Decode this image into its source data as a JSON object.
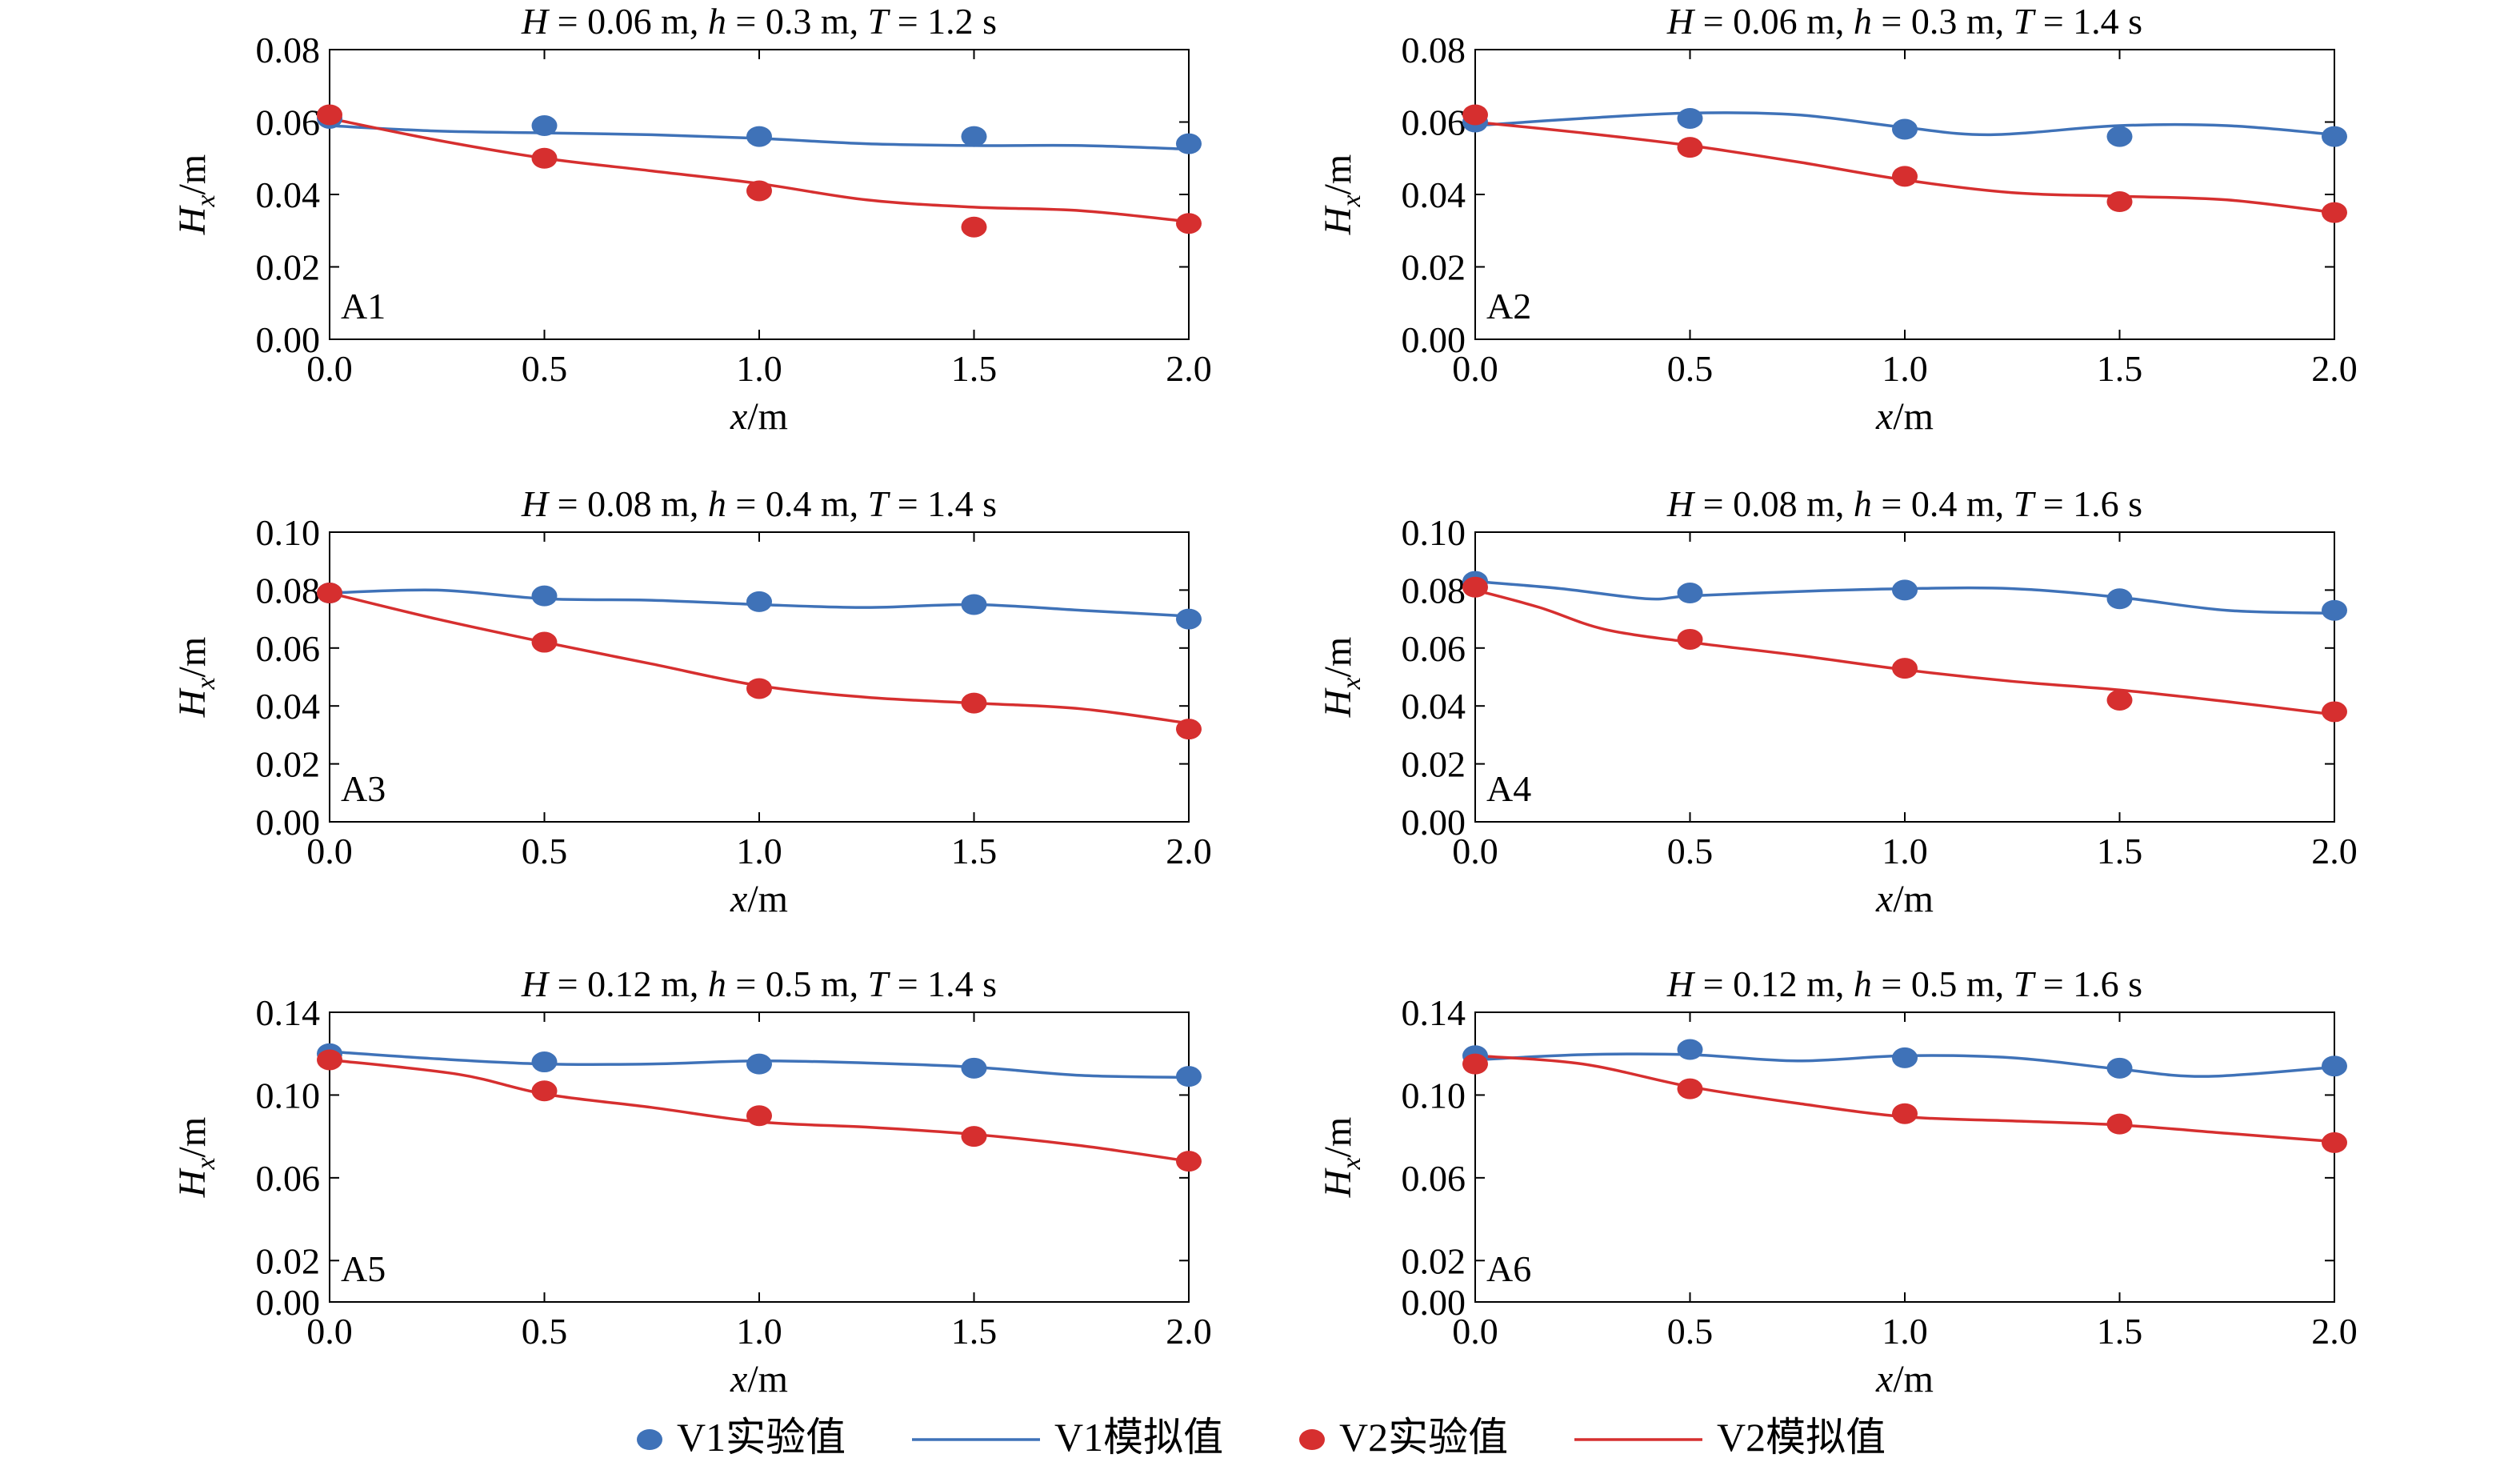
{
  "colors": {
    "v1": "#3f72b8",
    "v2": "#d62f2f",
    "frame": "#000000"
  },
  "legend": {
    "placement": "bottom-center",
    "entries": [
      {
        "kind": "marker",
        "series": "v1",
        "label": "V1实验值"
      },
      {
        "kind": "line",
        "series": "v1",
        "label": "V1模拟值"
      },
      {
        "kind": "marker",
        "series": "v2",
        "label": "V2实验值"
      },
      {
        "kind": "line",
        "series": "v2",
        "label": "V2模拟值"
      }
    ]
  },
  "chart_data": [
    {
      "type": "line",
      "panel_label": "A1",
      "title": {
        "H": "0.06",
        "h": "0.3",
        "T": "1.2"
      },
      "xlabel": "x/m",
      "ylabel": {
        "sym": "H",
        "sub": "x",
        "unit": "/m"
      },
      "xlim": [
        0,
        2.0
      ],
      "ylim": [
        0,
        0.08
      ],
      "xticks": [
        "0.0",
        "0.5",
        "1.0",
        "1.5",
        "2.0"
      ],
      "yticks": [
        "0.00",
        "0.02",
        "0.04",
        "0.06",
        "0.08"
      ],
      "series": [
        {
          "key": "v1",
          "name": "V1实验值",
          "style": "marker",
          "x": [
            0,
            0.5,
            1.0,
            1.5,
            2.0
          ],
          "y": [
            0.061,
            0.059,
            0.056,
            0.056,
            0.054
          ]
        },
        {
          "key": "v1",
          "name": "V1模拟值",
          "style": "line",
          "x": [
            0,
            0.25,
            0.5,
            0.75,
            1.0,
            1.25,
            1.5,
            1.75,
            2.0
          ],
          "y": [
            0.059,
            0.0575,
            0.057,
            0.0565,
            0.0555,
            0.054,
            0.0535,
            0.0535,
            0.0525
          ]
        },
        {
          "key": "v2",
          "name": "V2实验值",
          "style": "marker",
          "x": [
            0,
            0.5,
            1.0,
            1.5,
            2.0
          ],
          "y": [
            0.062,
            0.05,
            0.041,
            0.031,
            0.032
          ]
        },
        {
          "key": "v2",
          "name": "V2模拟值",
          "style": "line",
          "x": [
            0,
            0.25,
            0.5,
            0.75,
            1.0,
            1.25,
            1.5,
            1.75,
            2.0
          ],
          "y": [
            0.061,
            0.055,
            0.05,
            0.0465,
            0.043,
            0.0385,
            0.0365,
            0.0355,
            0.0325
          ]
        }
      ]
    },
    {
      "type": "line",
      "panel_label": "A2",
      "title": {
        "H": "0.06",
        "h": "0.3",
        "T": "1.4"
      },
      "xlabel": "x/m",
      "ylabel": {
        "sym": "H",
        "sub": "x",
        "unit": "/m"
      },
      "xlim": [
        0,
        2.0
      ],
      "ylim": [
        0,
        0.08
      ],
      "xticks": [
        "0.0",
        "0.5",
        "1.0",
        "1.5",
        "2.0"
      ],
      "yticks": [
        "0.00",
        "0.02",
        "0.04",
        "0.06",
        "0.08"
      ],
      "series": [
        {
          "key": "v1",
          "name": "V1实验值",
          "style": "marker",
          "x": [
            0,
            0.5,
            1.0,
            1.5,
            2.0
          ],
          "y": [
            0.06,
            0.061,
            0.058,
            0.056,
            0.056
          ]
        },
        {
          "key": "v1",
          "name": "V1模拟值",
          "style": "line",
          "x": [
            0,
            0.25,
            0.5,
            0.75,
            1.0,
            1.2,
            1.5,
            1.75,
            2.0
          ],
          "y": [
            0.059,
            0.061,
            0.0625,
            0.062,
            0.0585,
            0.0565,
            0.059,
            0.059,
            0.0565
          ]
        },
        {
          "key": "v2",
          "name": "V2实验值",
          "style": "marker",
          "x": [
            0,
            0.5,
            1.0,
            1.5,
            2.0
          ],
          "y": [
            0.062,
            0.053,
            0.045,
            0.038,
            0.035
          ]
        },
        {
          "key": "v2",
          "name": "V2模拟值",
          "style": "line",
          "x": [
            0,
            0.25,
            0.5,
            0.75,
            1.0,
            1.25,
            1.5,
            1.75,
            2.0
          ],
          "y": [
            0.06,
            0.057,
            0.0535,
            0.049,
            0.044,
            0.0405,
            0.0395,
            0.0385,
            0.035
          ]
        }
      ]
    },
    {
      "type": "line",
      "panel_label": "A3",
      "title": {
        "H": "0.08",
        "h": "0.4",
        "T": "1.4"
      },
      "xlabel": "x/m",
      "ylabel": {
        "sym": "H",
        "sub": "x",
        "unit": "/m"
      },
      "xlim": [
        0,
        2.0
      ],
      "ylim": [
        0,
        0.1
      ],
      "xticks": [
        "0.0",
        "0.5",
        "1.0",
        "1.5",
        "2.0"
      ],
      "yticks": [
        "0.00",
        "0.02",
        "0.04",
        "0.06",
        "0.08",
        "0.10"
      ],
      "series": [
        {
          "key": "v1",
          "name": "V1实验值",
          "style": "marker",
          "x": [
            0,
            0.5,
            1.0,
            1.5,
            2.0
          ],
          "y": [
            0.079,
            0.078,
            0.076,
            0.075,
            0.07
          ]
        },
        {
          "key": "v1",
          "name": "V1模拟值",
          "style": "line",
          "x": [
            0,
            0.25,
            0.5,
            0.75,
            1.0,
            1.25,
            1.5,
            1.75,
            2.0
          ],
          "y": [
            0.079,
            0.08,
            0.077,
            0.0765,
            0.075,
            0.074,
            0.075,
            0.073,
            0.071
          ]
        },
        {
          "key": "v2",
          "name": "V2实验值",
          "style": "marker",
          "x": [
            0,
            0.5,
            1.0,
            1.5,
            2.0
          ],
          "y": [
            0.079,
            0.062,
            0.046,
            0.041,
            0.032
          ]
        },
        {
          "key": "v2",
          "name": "V2模拟值",
          "style": "line",
          "x": [
            0,
            0.25,
            0.5,
            0.75,
            1.0,
            1.25,
            1.5,
            1.75,
            2.0
          ],
          "y": [
            0.079,
            0.07,
            0.062,
            0.0545,
            0.047,
            0.043,
            0.041,
            0.039,
            0.034
          ]
        }
      ]
    },
    {
      "type": "line",
      "panel_label": "A4",
      "title": {
        "H": "0.08",
        "h": "0.4",
        "T": "1.6"
      },
      "xlabel": "x/m",
      "ylabel": {
        "sym": "H",
        "sub": "x",
        "unit": "/m"
      },
      "xlim": [
        0,
        2.0
      ],
      "ylim": [
        0,
        0.1
      ],
      "xticks": [
        "0.0",
        "0.5",
        "1.0",
        "1.5",
        "2.0"
      ],
      "yticks": [
        "0.00",
        "0.02",
        "0.04",
        "0.06",
        "0.08",
        "0.10"
      ],
      "series": [
        {
          "key": "v1",
          "name": "V1实验值",
          "style": "marker",
          "x": [
            0,
            0.5,
            1.0,
            1.5,
            2.0
          ],
          "y": [
            0.083,
            0.079,
            0.08,
            0.077,
            0.073
          ]
        },
        {
          "key": "v1",
          "name": "V1模拟值",
          "style": "line",
          "x": [
            0,
            0.2,
            0.4,
            0.5,
            0.75,
            1.0,
            1.25,
            1.5,
            1.75,
            2.0
          ],
          "y": [
            0.083,
            0.0805,
            0.077,
            0.078,
            0.0795,
            0.0805,
            0.0805,
            0.0775,
            0.073,
            0.072
          ]
        },
        {
          "key": "v2",
          "name": "V2实验值",
          "style": "marker",
          "x": [
            0,
            0.5,
            1.0,
            1.5,
            2.0
          ],
          "y": [
            0.081,
            0.063,
            0.053,
            0.042,
            0.038
          ]
        },
        {
          "key": "v2",
          "name": "V2模拟值",
          "style": "line",
          "x": [
            0,
            0.15,
            0.3,
            0.5,
            0.75,
            1.0,
            1.25,
            1.5,
            1.75,
            2.0
          ],
          "y": [
            0.08,
            0.074,
            0.0665,
            0.062,
            0.0575,
            0.0525,
            0.0485,
            0.0455,
            0.0415,
            0.037
          ]
        }
      ]
    },
    {
      "type": "line",
      "panel_label": "A5",
      "title": {
        "H": "0.12",
        "h": "0.5",
        "T": "1.4"
      },
      "xlabel": "x/m",
      "ylabel": {
        "sym": "H",
        "sub": "x",
        "unit": "/m"
      },
      "xlim": [
        0,
        2.0
      ],
      "ylim": [
        0,
        0.14
      ],
      "xticks": [
        "0.0",
        "0.5",
        "1.0",
        "1.5",
        "2.0"
      ],
      "yticks": [
        "0.00",
        "0.02",
        "0.06",
        "0.10",
        "0.14"
      ],
      "series": [
        {
          "key": "v1",
          "name": "V1实验值",
          "style": "marker",
          "x": [
            0,
            0.5,
            1.0,
            1.5,
            2.0
          ],
          "y": [
            0.12,
            0.116,
            0.115,
            0.113,
            0.109
          ]
        },
        {
          "key": "v1",
          "name": "V1模拟值",
          "style": "line",
          "x": [
            0,
            0.25,
            0.5,
            0.75,
            1.0,
            1.25,
            1.5,
            1.75,
            2.0
          ],
          "y": [
            0.121,
            0.1175,
            0.115,
            0.115,
            0.1165,
            0.1155,
            0.1135,
            0.1095,
            0.1085
          ]
        },
        {
          "key": "v2",
          "name": "V2实验值",
          "style": "marker",
          "x": [
            0,
            0.5,
            1.0,
            1.5,
            2.0
          ],
          "y": [
            0.117,
            0.102,
            0.09,
            0.08,
            0.068
          ]
        },
        {
          "key": "v2",
          "name": "V2模拟值",
          "style": "line",
          "x": [
            0,
            0.3,
            0.5,
            0.75,
            1.0,
            1.25,
            1.5,
            1.75,
            2.0
          ],
          "y": [
            0.117,
            0.11,
            0.1005,
            0.094,
            0.087,
            0.0845,
            0.081,
            0.0755,
            0.068
          ]
        }
      ]
    },
    {
      "type": "line",
      "panel_label": "A6",
      "title": {
        "H": "0.12",
        "h": "0.5",
        "T": "1.6"
      },
      "xlabel": "x/m",
      "ylabel": {
        "sym": "H",
        "sub": "x",
        "unit": "/m"
      },
      "xlim": [
        0,
        2.0
      ],
      "ylim": [
        0,
        0.14
      ],
      "xticks": [
        "0.0",
        "0.5",
        "1.0",
        "1.5",
        "2.0"
      ],
      "yticks": [
        "0.00",
        "0.02",
        "0.06",
        "0.10",
        "0.14"
      ],
      "series": [
        {
          "key": "v1",
          "name": "V1实验值",
          "style": "marker",
          "x": [
            0,
            0.5,
            1.0,
            1.5,
            2.0
          ],
          "y": [
            0.119,
            0.122,
            0.118,
            0.113,
            0.114
          ]
        },
        {
          "key": "v1",
          "name": "V1模拟值",
          "style": "line",
          "x": [
            0,
            0.25,
            0.5,
            0.75,
            1.0,
            1.25,
            1.5,
            1.7,
            2.0
          ],
          "y": [
            0.117,
            0.1195,
            0.1195,
            0.1165,
            0.119,
            0.118,
            0.1125,
            0.109,
            0.1135
          ]
        },
        {
          "key": "v2",
          "name": "V2实验值",
          "style": "marker",
          "x": [
            0,
            0.5,
            1.0,
            1.5,
            2.0
          ],
          "y": [
            0.115,
            0.103,
            0.091,
            0.086,
            0.077
          ]
        },
        {
          "key": "v2",
          "name": "V2模拟值",
          "style": "line",
          "x": [
            0,
            0.25,
            0.5,
            0.75,
            1.0,
            1.25,
            1.5,
            1.75,
            2.0
          ],
          "y": [
            0.119,
            0.115,
            0.104,
            0.096,
            0.0895,
            0.0875,
            0.0855,
            0.0815,
            0.0775
          ]
        }
      ]
    }
  ]
}
